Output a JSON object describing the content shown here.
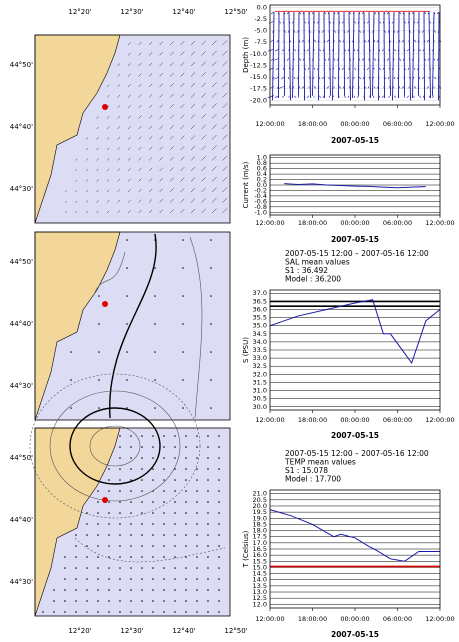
{
  "maps": {
    "lon_labels": [
      "12°20'",
      "12°30'",
      "12°40'",
      "12°50'"
    ],
    "lat_labels": [
      "44°50'",
      "44°40'",
      "44°30'"
    ]
  },
  "chart_data": [
    {
      "type": "vector-profile",
      "y_label": "Depth (m)",
      "x_label": "2007-05-15",
      "xlim": [
        0,
        24
      ],
      "xticks": [
        {
          "value": 0,
          "label": "12:00:00"
        },
        {
          "value": 6,
          "label": "18:00:00"
        },
        {
          "value": 12,
          "label": "00:00:00"
        },
        {
          "value": 18,
          "label": "06:00:00"
        },
        {
          "value": 24,
          "label": "12:00:00"
        }
      ],
      "ylim": [
        -21,
        0.5
      ],
      "yticks": [
        {
          "value": 0,
          "label": "0.0"
        },
        -2.5,
        {
          "value": -5,
          "label": "-5.0"
        },
        -7.5,
        {
          "value": -10,
          "label": "-10.0"
        },
        -12.5,
        {
          "value": -15,
          "label": "-15.0"
        },
        -17.5,
        {
          "value": -20,
          "label": "-20.0"
        }
      ],
      "color": "#1a1aa8"
    },
    {
      "type": "line",
      "y_label": "Current (m/s)",
      "x_label": "2007-05-15",
      "xlim": [
        0,
        24
      ],
      "xticks": [
        {
          "value": 0,
          "label": "12:00:00"
        },
        {
          "value": 6,
          "label": "18:00:00"
        },
        {
          "value": 12,
          "label": "00:00:00"
        },
        {
          "value": 18,
          "label": "06:00:00"
        },
        {
          "value": 24,
          "label": "12:00:00"
        }
      ],
      "ylim": [
        -1.1,
        1.1
      ],
      "yticks": [
        {
          "value": 1,
          "label": "1.0"
        },
        0.8,
        0.6,
        0.4,
        0.2,
        {
          "value": 0,
          "label": "0.0"
        },
        -0.2,
        -0.4,
        -0.6,
        -0.8,
        {
          "value": -1,
          "label": "-1.0"
        }
      ],
      "series": [
        {
          "color": "#1a1aa8",
          "x": [
            2,
            4,
            6,
            8,
            10,
            12,
            14,
            16,
            18,
            20,
            22
          ],
          "values": [
            0.05,
            0.02,
            0.04,
            0,
            -0.02,
            -0.04,
            -0.05,
            -0.08,
            -0.1,
            -0.08,
            -0.06
          ]
        }
      ]
    },
    {
      "type": "line",
      "annotations": [
        "2007-05-15 12:00 – 2007-05-16 12:00",
        "SAL mean values",
        "S1      : 36.492",
        "Model : 36.200"
      ],
      "y_label": "S (PSU)",
      "x_label": "2007-05-15",
      "xlim": [
        0,
        24
      ],
      "xticks": [
        {
          "value": 0,
          "label": "12:00:00"
        },
        {
          "value": 6,
          "label": "18:00:00"
        },
        {
          "value": 12,
          "label": "00:00:00"
        },
        {
          "value": 18,
          "label": "06:00:00"
        },
        {
          "value": 24,
          "label": "12:00:00"
        }
      ],
      "ylim": [
        29.8,
        37.2
      ],
      "yticks": [
        {
          "value": 30,
          "label": "30.0"
        },
        30.5,
        {
          "value": 31,
          "label": "31.0"
        },
        31.5,
        {
          "value": 32,
          "label": "32.0"
        },
        32.5,
        {
          "value": 33,
          "label": "33.0"
        },
        33.5,
        {
          "value": 34,
          "label": "34.0"
        },
        34.5,
        {
          "value": 35,
          "label": "35.0"
        },
        35.5,
        {
          "value": 36,
          "label": "36.0"
        },
        36.5,
        {
          "value": 37,
          "label": "37.0"
        }
      ],
      "hlines": [
        {
          "value": 36.492,
          "color": "#000000"
        },
        {
          "value": 36.2,
          "color": "#000000"
        }
      ],
      "series": [
        {
          "color": "#1a1aa8",
          "x": [
            0,
            4,
            8,
            12,
            14.5,
            16,
            17,
            20,
            22,
            24
          ],
          "values": [
            35.0,
            35.6,
            36.0,
            36.4,
            36.6,
            34.5,
            34.5,
            32.7,
            35.3,
            36.0
          ]
        }
      ]
    },
    {
      "type": "line",
      "annotations": [
        "2007-05-15 12:00 – 2007-05-16 12:00",
        "TEMP mean values",
        "S1      : 15.078",
        "Model : 17.700"
      ],
      "y_label": "T (Celsius)",
      "x_label": "2007-05-15",
      "xlim": [
        0,
        24
      ],
      "xticks": [
        {
          "value": 0,
          "label": "12:00:00"
        },
        {
          "value": 6,
          "label": "18:00:00"
        },
        {
          "value": 12,
          "label": "00:00:00"
        },
        {
          "value": 18,
          "label": "06:00:00"
        },
        {
          "value": 24,
          "label": "12:00:00"
        }
      ],
      "ylim": [
        11.7,
        21.3
      ],
      "yticks": [
        {
          "value": 12,
          "label": "12.0"
        },
        12.5,
        {
          "value": 13,
          "label": "13.0"
        },
        13.5,
        {
          "value": 14,
          "label": "14.0"
        },
        14.5,
        {
          "value": 15,
          "label": "15.0"
        },
        15.5,
        {
          "value": 16,
          "label": "16.0"
        },
        16.5,
        {
          "value": 17,
          "label": "17.0"
        },
        17.5,
        {
          "value": 18,
          "label": "18.0"
        },
        18.5,
        {
          "value": 19,
          "label": "19.0"
        },
        19.5,
        {
          "value": 20,
          "label": "20.0"
        },
        20.5,
        {
          "value": 21,
          "label": "21.0"
        }
      ],
      "hlines": [
        {
          "value": 15.078,
          "color": "#e00000"
        }
      ],
      "series": [
        {
          "color": "#1a1aa8",
          "x": [
            0,
            3,
            6,
            9,
            10,
            12,
            14,
            15,
            17,
            19,
            21,
            24
          ],
          "values": [
            19.7,
            19.2,
            18.5,
            17.5,
            17.7,
            17.4,
            16.7,
            16.4,
            15.7,
            15.5,
            16.3,
            16.3
          ]
        }
      ]
    }
  ]
}
